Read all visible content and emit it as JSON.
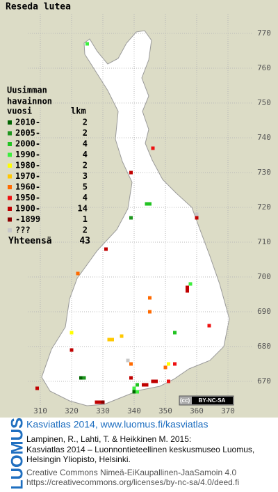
{
  "title": "Reseda lutea",
  "legend": {
    "header": [
      "Uusimman",
      "havainnon",
      "vuosi",
      "lkm"
    ],
    "entries": [
      {
        "label": "2010-",
        "count": 2,
        "color": "#006400",
        "squares": {
          "x": [
            323,
            340
          ],
          "y": [
            671,
            667
          ]
        }
      },
      {
        "label": "2005-",
        "count": 2,
        "color": "#1e961e",
        "squares": {
          "x": [
            339,
            324
          ],
          "y": [
            717,
            671
          ]
        }
      },
      {
        "label": "2000-",
        "count": 4,
        "color": "#22c322",
        "squares": {
          "x": [
            344,
            345,
            353,
            341
          ],
          "y": [
            721,
            721,
            684,
            669
          ]
        }
      },
      {
        "label": "1990-",
        "count": 4,
        "color": "#3cee3c",
        "squares": {
          "x": [
            325,
            358,
            340,
            341
          ],
          "y": [
            767,
            698,
            668,
            667
          ]
        }
      },
      {
        "label": "1980-",
        "count": 2,
        "color": "#ffff00",
        "squares": {
          "x": [
            320,
            351
          ],
          "y": [
            684,
            675
          ]
        }
      },
      {
        "label": "1970-",
        "count": 3,
        "color": "#ffc800",
        "squares": {
          "x": [
            336,
            332,
            333
          ],
          "y": [
            683,
            682,
            682
          ]
        }
      },
      {
        "label": "1960-",
        "count": 5,
        "color": "#ff6a00",
        "squares": {
          "x": [
            322,
            345,
            345,
            339,
            350
          ],
          "y": [
            701,
            694,
            690,
            675,
            674
          ]
        }
      },
      {
        "label": "1950-",
        "count": 4,
        "color": "#ee1111",
        "squares": {
          "x": [
            346,
            364,
            351,
            353
          ],
          "y": [
            737,
            686,
            670,
            675
          ]
        }
      },
      {
        "label": "1900-",
        "count": 14,
        "color": "#c00000",
        "squares": {
          "x": [
            339,
            360,
            331,
            357,
            357,
            320,
            339,
            344,
            346,
            347,
            309,
            328,
            329,
            343
          ],
          "y": [
            730,
            717,
            708,
            697,
            696,
            679,
            671,
            669,
            670,
            670,
            668,
            664,
            664,
            669
          ]
        }
      },
      {
        "label": "-1899",
        "count": 1,
        "color": "#8b0000",
        "squares": {
          "x": [
            330
          ],
          "y": [
            664
          ]
        }
      },
      {
        "label": "???",
        "count": 2,
        "color": "#c8c8c8",
        "squares": {
          "x": [
            360,
            338
          ],
          "y": [
            718,
            676
          ]
        }
      }
    ],
    "total_label": "Yhteensä",
    "total": 43
  },
  "xticks": [
    310,
    320,
    330,
    340,
    350,
    360,
    370
  ],
  "yticks": [
    670,
    680,
    690,
    700,
    710,
    720,
    730,
    740,
    750,
    760,
    770
  ],
  "license": "BY-NC-SA",
  "footer": {
    "brand": "LUOMUS",
    "headline": "Kasviatlas 2014, www.luomus.fi/kasviatlas",
    "citation": [
      "Lampinen, R., Lahti, T. & Heikkinen M. 2015:",
      "Kasviatlas 2014 – Luonnontieteellinen keskusmuseo Luomus,",
      "Helsingin Yliopisto, Helsinki."
    ],
    "license_lines": [
      "Creative Commons Nimeä-EiKaupallinen-JaaSamoin 4.0",
      "https://creativecommons.org/licenses/by-nc-sa/4.0/deed.fi"
    ]
  }
}
